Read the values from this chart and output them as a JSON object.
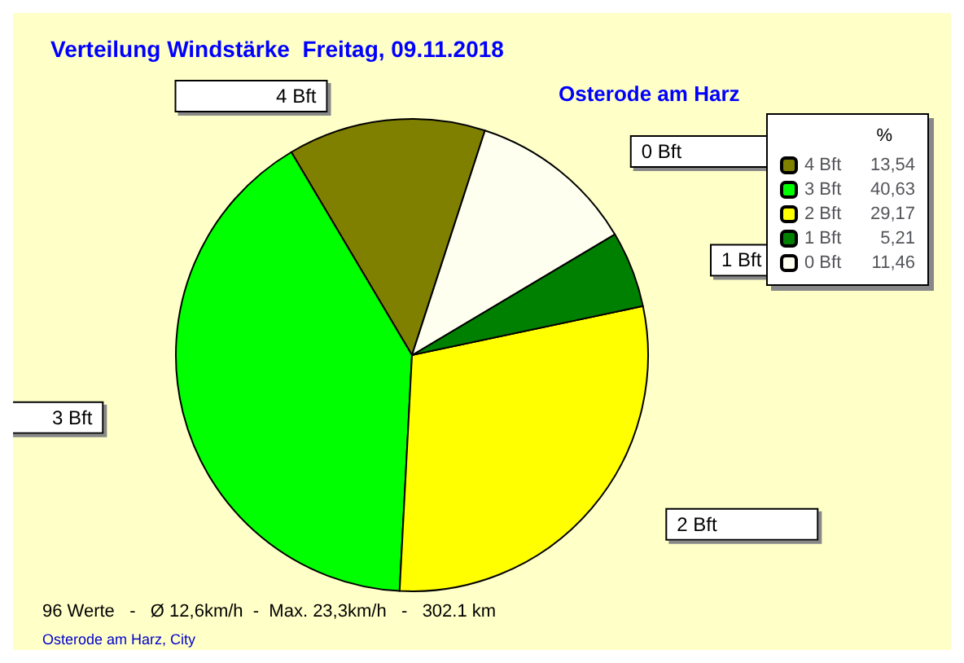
{
  "chart_data": {
    "type": "pie",
    "title": "Verteilung Windstärke  Freitag, 09.11.2018",
    "subtitle": "Osterode am Harz",
    "legend_title": "%",
    "categories": [
      "4 Bft",
      "3 Bft",
      "2 Bft",
      "1 Bft",
      "0 Bft"
    ],
    "values": [
      13.54,
      40.63,
      29.17,
      5.21,
      11.46
    ],
    "value_labels": [
      "13,54",
      "40,63",
      "29,17",
      "5,21",
      "11,46"
    ],
    "colors": [
      "#808000",
      "#00ff00",
      "#ffff00",
      "#008000",
      "#fffff0"
    ],
    "legend": "top right",
    "annotations": [
      "96 Werte   -   Ø 12,6km/h  -  Max. 23,3km/h   -   302.1 km",
      "Osterode am Harz, City"
    ]
  }
}
